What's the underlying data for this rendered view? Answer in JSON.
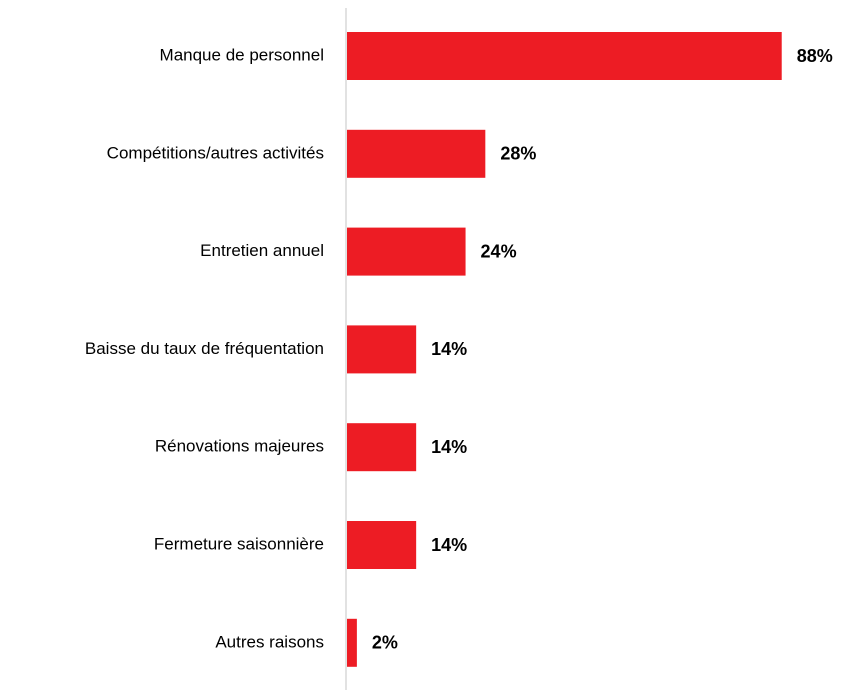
{
  "chart_data": {
    "type": "hbar",
    "categories": [
      "Manque de personnel",
      "Compétitions/autres activités",
      "Entretien annuel",
      "Baisse du taux de fréquentation",
      "Rénovations majeures",
      "Fermeture saisonnière",
      "Autres raisons"
    ],
    "values": [
      88,
      28,
      24,
      14,
      14,
      14,
      2
    ],
    "value_labels": [
      "88%",
      "28%",
      "24%",
      "14%",
      "14%",
      "14%",
      "2%"
    ],
    "color": "#ed1c24"
  }
}
